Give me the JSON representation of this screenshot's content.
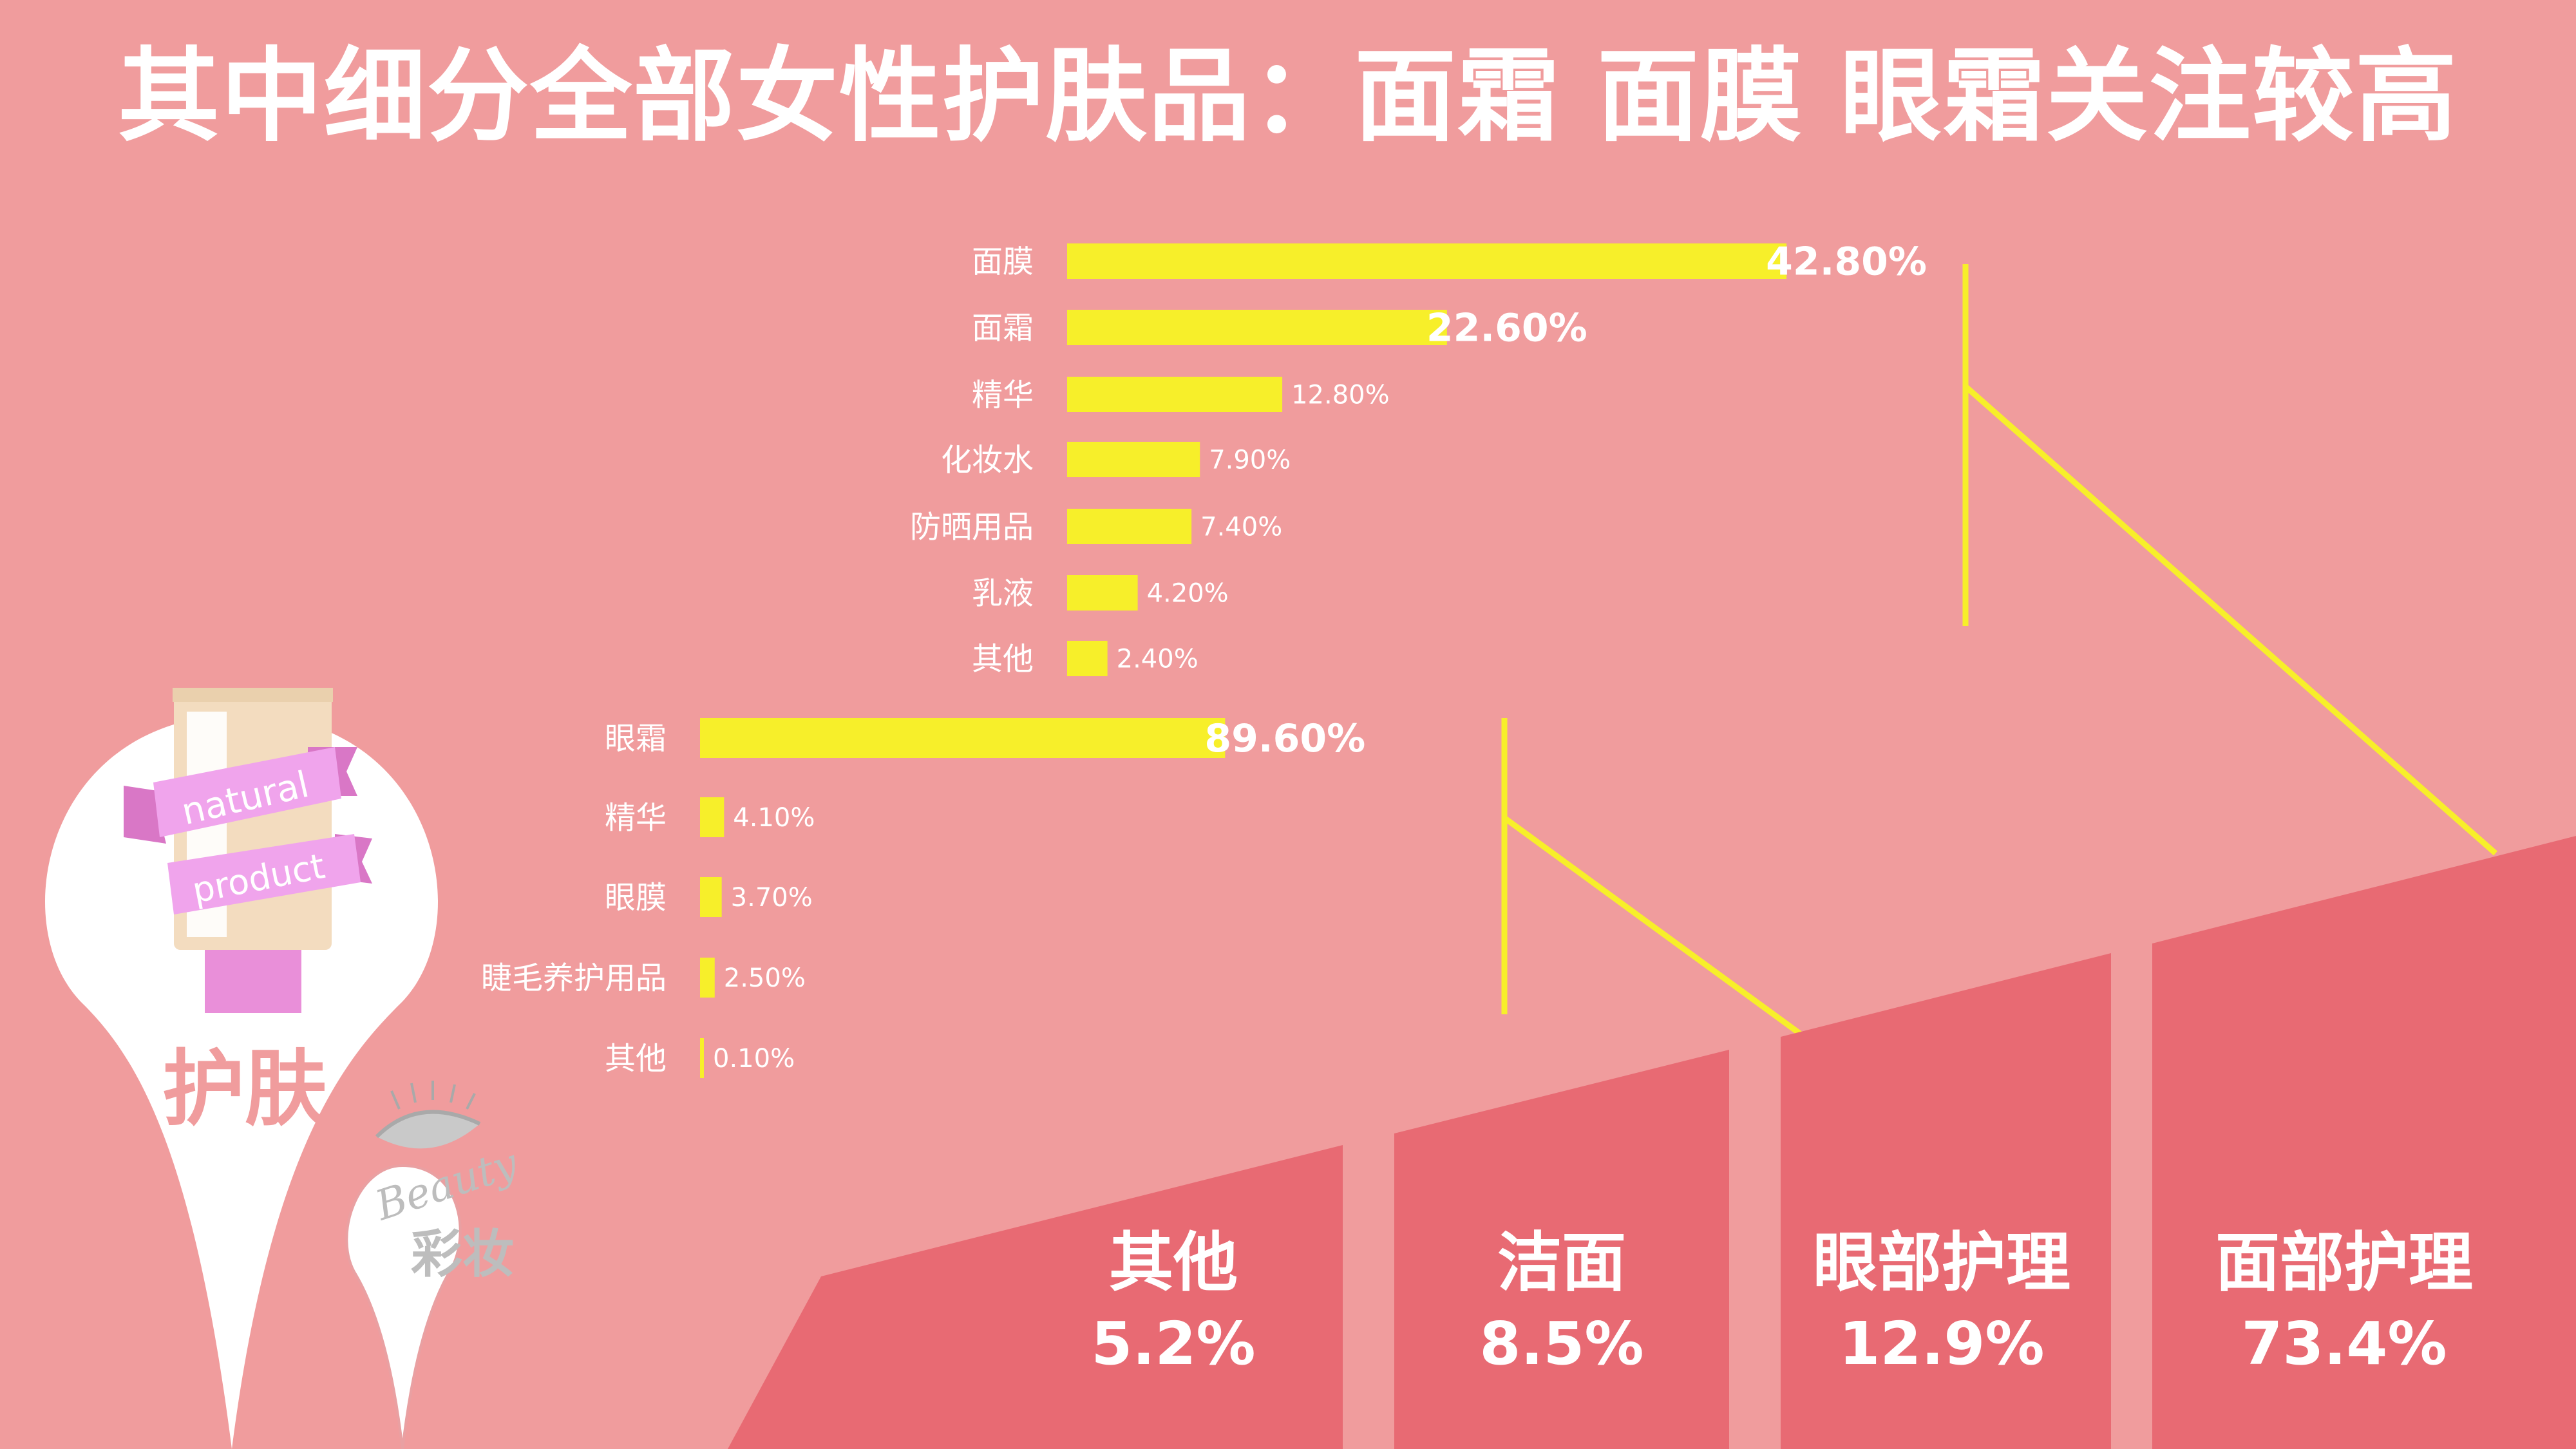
{
  "title": "其中细分全部女性护肤品：面霜 面膜 眼霜关注较高",
  "colors": {
    "background": "#f09c9d",
    "bar": "#f7ef2a",
    "section": "#e86a73",
    "white": "#ffffff",
    "connector": "#f7ef2a"
  },
  "chart_data": [
    {
      "type": "bar",
      "orientation": "horizontal",
      "categories": [
        "面膜",
        "面霜",
        "精华",
        "化妆水",
        "防晒用品",
        "乳液",
        "其他"
      ],
      "values": [
        42.8,
        22.6,
        12.8,
        7.9,
        7.4,
        4.2,
        2.4
      ],
      "value_labels": [
        "42.80%",
        "22.60%",
        "12.80%",
        "7.90%",
        "7.40%",
        "4.20%",
        "2.40%"
      ]
    },
    {
      "type": "bar",
      "orientation": "horizontal",
      "categories": [
        "眼霜",
        "精华",
        "眼膜",
        "睫毛养护用品",
        "其他"
      ],
      "values": [
        89.6,
        4.1,
        3.7,
        2.5,
        0.1
      ],
      "value_labels": [
        "89.60%",
        "4.10%",
        "3.70%",
        "2.50%",
        "0.10%"
      ]
    },
    {
      "type": "bar",
      "categories": [
        "其他",
        "洁面",
        "眼部护理",
        "面部护理"
      ],
      "values": [
        5.2,
        8.5,
        12.9,
        73.4
      ],
      "value_labels": [
        "5.2%",
        "8.5%",
        "12.9%",
        "73.4%"
      ]
    }
  ],
  "decor": {
    "skincare_pin_label": "护肤",
    "ribbon_top": "natural",
    "ribbon_bottom": "product",
    "makeup_pin_label": "彩妆",
    "beauty_script": "Beauty",
    "icons": [
      "cream-tube-icon",
      "eye-lash-icon"
    ]
  }
}
